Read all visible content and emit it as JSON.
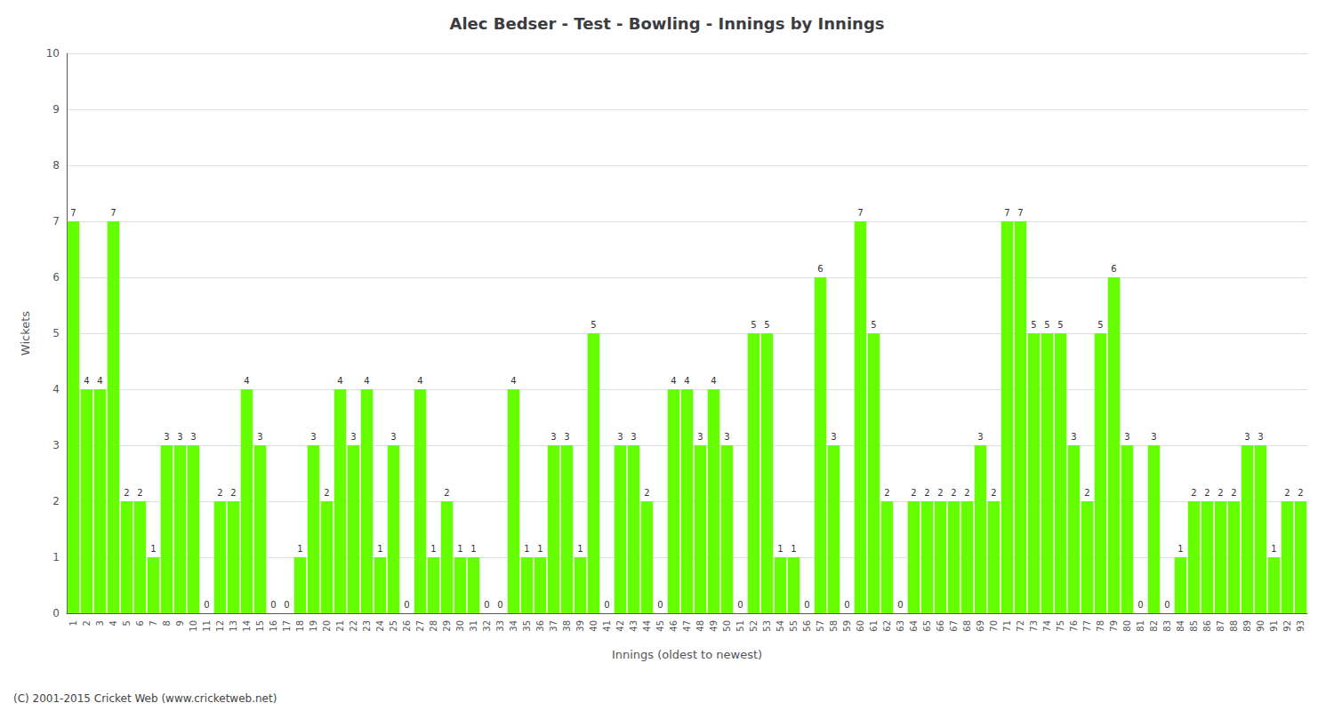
{
  "chart_data": {
    "type": "bar",
    "title": "Alec Bedser - Test - Bowling - Innings by Innings",
    "xlabel": "Innings (oldest to newest)",
    "ylabel": "Wickets",
    "annotations": [
      "(C) 2001-2015 Cricket Web (www.cricketweb.net)"
    ],
    "categories": [
      "1",
      "2",
      "3",
      "4",
      "5",
      "6",
      "7",
      "8",
      "9",
      "10",
      "11",
      "12",
      "13",
      "14",
      "15",
      "16",
      "17",
      "18",
      "19",
      "20",
      "21",
      "22",
      "23",
      "24",
      "25",
      "26",
      "27",
      "28",
      "29",
      "30",
      "31",
      "32",
      "33",
      "34",
      "35",
      "36",
      "37",
      "38",
      "39",
      "40",
      "41",
      "42",
      "43",
      "44",
      "45",
      "46",
      "47",
      "48",
      "49",
      "50",
      "51",
      "52",
      "53",
      "54",
      "55",
      "56",
      "57",
      "58",
      "59",
      "60",
      "61",
      "62",
      "63",
      "64",
      "65",
      "66",
      "67",
      "68",
      "69",
      "70",
      "71",
      "72",
      "73",
      "74",
      "75",
      "76",
      "77",
      "78",
      "79",
      "80",
      "81",
      "82",
      "83",
      "84",
      "85",
      "86",
      "87",
      "88",
      "89",
      "90",
      "91",
      "92",
      "93"
    ],
    "values": [
      7,
      4,
      4,
      7,
      2,
      2,
      1,
      3,
      3,
      3,
      0,
      2,
      2,
      4,
      3,
      0,
      0,
      1,
      3,
      2,
      4,
      3,
      4,
      1,
      3,
      0,
      4,
      1,
      2,
      1,
      1,
      0,
      0,
      4,
      1,
      1,
      3,
      3,
      1,
      5,
      0,
      3,
      3,
      2,
      0,
      4,
      4,
      3,
      4,
      3,
      0,
      5,
      5,
      1,
      1,
      0,
      6,
      3,
      0,
      7,
      5,
      2,
      0,
      2,
      2,
      2,
      2,
      2,
      3,
      2,
      7,
      7,
      5,
      5,
      5,
      3,
      2,
      5,
      6,
      3,
      0,
      3,
      0,
      1,
      2,
      2,
      2,
      2,
      3,
      3,
      1,
      2,
      2
    ],
    "color": "#66ff00",
    "ylim": [
      0,
      10
    ],
    "yticks": [
      0,
      1,
      2,
      3,
      4,
      5,
      6,
      7,
      8,
      9,
      10
    ],
    "grid": true,
    "data_labels": true
  }
}
